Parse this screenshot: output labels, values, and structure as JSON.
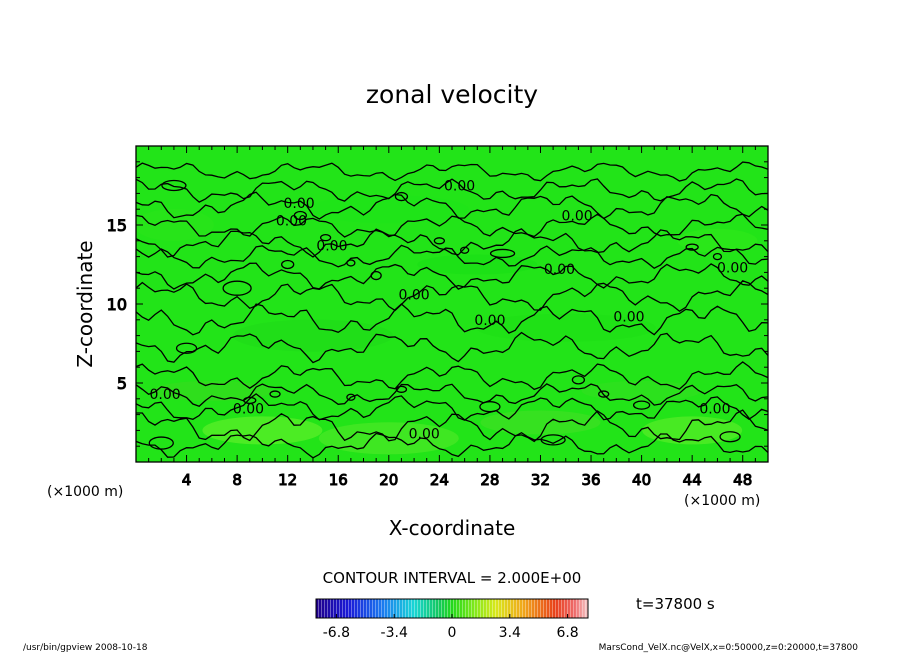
{
  "chart_data": {
    "type": "heatmap",
    "title": "zonal velocity",
    "xlabel": "X-coordinate",
    "ylabel": "Z-coordinate",
    "x_unit": "(×1000 m)",
    "y_unit": "(×1000 m)",
    "xlim": [
      0,
      50
    ],
    "ylim": [
      0,
      20
    ],
    "x_ticks": [
      4,
      8,
      12,
      16,
      20,
      24,
      28,
      32,
      36,
      40,
      44,
      48
    ],
    "y_ticks": [
      5,
      10,
      15
    ],
    "contour_interval_label": "CONTOUR INTERVAL = 2.000E+00",
    "contour_labels": [
      {
        "text": "0.00",
        "x": 25.6,
        "z": 17.5
      },
      {
        "text": "0.00",
        "x": 12.9,
        "z": 16.4
      },
      {
        "text": "0.00",
        "x": 12.3,
        "z": 15.3
      },
      {
        "text": "0.00",
        "x": 34.9,
        "z": 15.6
      },
      {
        "text": "0.00",
        "x": 15.5,
        "z": 13.7
      },
      {
        "text": "0.00",
        "x": 33.5,
        "z": 12.2
      },
      {
        "text": "0.00",
        "x": 47.2,
        "z": 12.3
      },
      {
        "text": "0.00",
        "x": 22.0,
        "z": 10.6
      },
      {
        "text": "0.00",
        "x": 28.0,
        "z": 9.0
      },
      {
        "text": "0.00",
        "x": 39.0,
        "z": 9.2
      },
      {
        "text": "0.00",
        "x": 2.3,
        "z": 4.3
      },
      {
        "text": "0.00",
        "x": 8.9,
        "z": 3.4
      },
      {
        "text": "0.00",
        "x": 22.8,
        "z": 1.8
      },
      {
        "text": "0.00",
        "x": 45.8,
        "z": 3.4
      }
    ],
    "colorbar": {
      "min": -8,
      "max": 8,
      "tick_labels": [
        "-6.8",
        "-3.4",
        "0",
        "3.4",
        "6.8"
      ],
      "tick_values": [
        -6.8,
        -3.4,
        0,
        3.4,
        6.8
      ]
    },
    "time_label": "t=37800 s",
    "colors": {
      "field_base": "#22e418",
      "contour": "#000000"
    }
  },
  "footer": {
    "left": "/usr/bin/gpview   2008-10-18",
    "right": "MarsCond_VelX.nc@VelX,x=0:50000,z=0:20000,t=37800"
  }
}
